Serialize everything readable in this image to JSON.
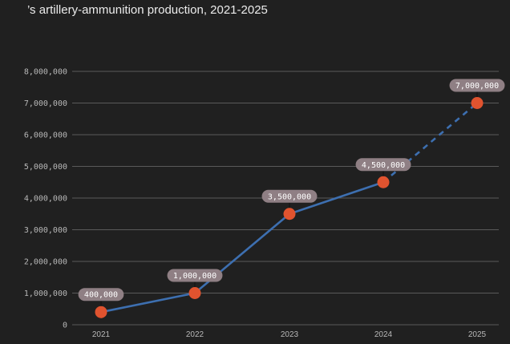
{
  "chart_data": {
    "type": "line",
    "title": "’s artillery-ammunition production, 2021-2025",
    "categories": [
      "2021",
      "2022",
      "2023",
      "2024",
      "2025"
    ],
    "values": [
      400000,
      1000000,
      3500000,
      4500000,
      7000000
    ],
    "data_labels": [
      "400,000",
      "1,000,000",
      "3,500,000",
      "4,500,000",
      "7,000,000"
    ],
    "projected_from_index": 3,
    "ylim": [
      0,
      8000000
    ],
    "yticks": [
      0,
      1000000,
      2000000,
      3000000,
      4000000,
      5000000,
      6000000,
      7000000,
      8000000
    ],
    "ytick_labels": [
      "0",
      "1,000,000",
      "2,000,000",
      "3,000,000",
      "4,000,000",
      "5,000,000",
      "6,000,000",
      "7,000,000",
      "8,000,000"
    ],
    "xlabel": "",
    "ylabel": "",
    "grid": true,
    "colors": {
      "line": "#3d6fb0",
      "marker": "#e0532f",
      "label_bg": "#8f7f84",
      "grid": "#5a5a5a",
      "background": "#202020"
    }
  }
}
